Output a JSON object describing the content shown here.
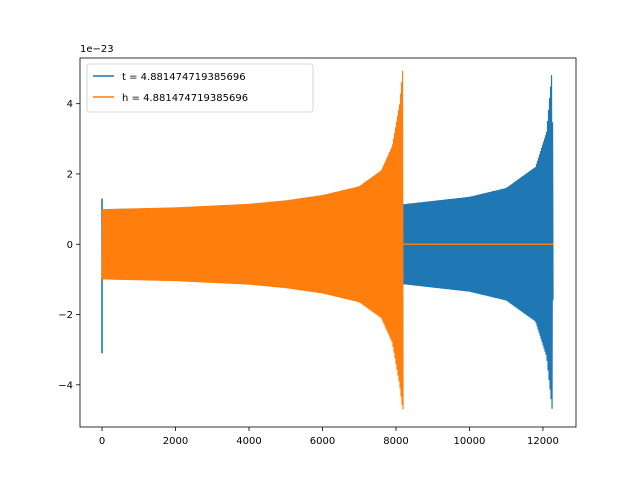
{
  "chart_data": {
    "type": "line",
    "title": "",
    "xlabel": "",
    "ylabel": "",
    "y_offset_label": "1e−23",
    "xlim": [
      -600,
      12900
    ],
    "ylim": [
      -5.2,
      5.3
    ],
    "x_ticks": [
      0,
      2000,
      4000,
      6000,
      8000,
      10000,
      12000
    ],
    "x_tick_labels": [
      "0",
      "2000",
      "4000",
      "6000",
      "8000",
      "10000",
      "12000"
    ],
    "y_ticks": [
      -4,
      -2,
      0,
      2,
      4
    ],
    "y_tick_labels": [
      "−4",
      "−2",
      "0",
      "2",
      "4"
    ],
    "grid": false,
    "legend_position": "upper-left",
    "series": [
      {
        "name": "t = 4.881474719385696",
        "color": "#1f77b4",
        "x_end": 12288,
        "envelope": {
          "start_x": 0,
          "spike_max": 1.3,
          "spike_min": -3.1,
          "upper": [
            [
              0,
              1.0
            ],
            [
              2000,
              1.03
            ],
            [
              4000,
              1.05
            ],
            [
              6000,
              1.08
            ],
            [
              8000,
              1.12
            ],
            [
              8300,
              1.15
            ],
            [
              10000,
              1.35
            ],
            [
              11000,
              1.6
            ],
            [
              11800,
              2.2
            ],
            [
              12100,
              3.2
            ],
            [
              12250,
              5.0
            ],
            [
              12288,
              0.0
            ]
          ],
          "lower": [
            [
              0,
              -1.0
            ],
            [
              2000,
              -1.03
            ],
            [
              4000,
              -1.05
            ],
            [
              6000,
              -1.08
            ],
            [
              8000,
              -1.12
            ],
            [
              8300,
              -1.15
            ],
            [
              10000,
              -1.35
            ],
            [
              11000,
              -1.6
            ],
            [
              11800,
              -2.2
            ],
            [
              12100,
              -3.2
            ],
            [
              12250,
              -4.7
            ],
            [
              12288,
              0.0
            ]
          ]
        }
      },
      {
        "name": "h = 4.881474719385696",
        "color": "#ff7f0e",
        "x_end": 12288,
        "active_end": 8200,
        "envelope": {
          "start_x": 0,
          "upper": [
            [
              0,
              1.0
            ],
            [
              2000,
              1.05
            ],
            [
              4000,
              1.15
            ],
            [
              5000,
              1.25
            ],
            [
              6000,
              1.4
            ],
            [
              7000,
              1.65
            ],
            [
              7600,
              2.1
            ],
            [
              7900,
              2.8
            ],
            [
              8100,
              4.0
            ],
            [
              8180,
              4.95
            ]
          ],
          "lower": [
            [
              0,
              -1.0
            ],
            [
              2000,
              -1.05
            ],
            [
              4000,
              -1.15
            ],
            [
              5000,
              -1.25
            ],
            [
              6000,
              -1.4
            ],
            [
              7000,
              -1.65
            ],
            [
              7600,
              -2.1
            ],
            [
              7900,
              -2.8
            ],
            [
              8100,
              -4.0
            ],
            [
              8180,
              -4.7
            ]
          ]
        }
      }
    ]
  }
}
